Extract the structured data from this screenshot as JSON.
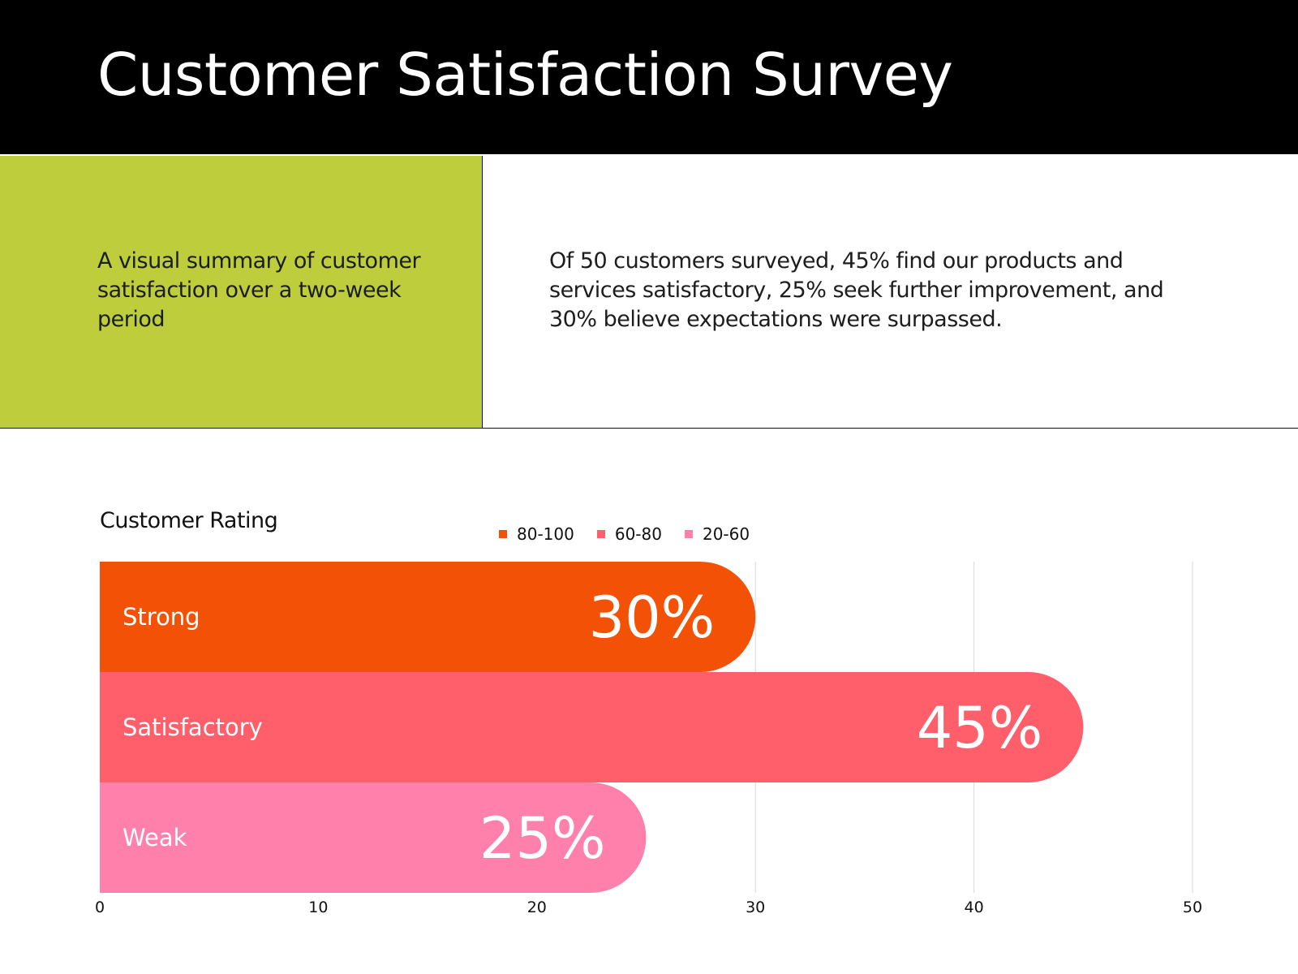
{
  "header": {
    "title": "Customer Satisfaction Survey"
  },
  "summary": {
    "text": "A visual summary of customer satisfaction over a two-week period"
  },
  "description": {
    "text": "Of 50 customers surveyed, 45% find our products and services satisfactory, 25% seek further improvement, and 30% believe expectations were surpassed."
  },
  "colors": {
    "header_bg": "#000000",
    "summary_bg": "#bdcd3b",
    "strong": "#f25106",
    "satisfactory": "#ff5e6b",
    "weak": "#ff80aa",
    "gridline": "#d9d9d9"
  },
  "chart_data": {
    "type": "bar",
    "orientation": "horizontal",
    "title": "Customer Rating",
    "categories": [
      "Strong",
      "Satisfactory",
      "Weak"
    ],
    "values": [
      30,
      45,
      25
    ],
    "value_labels": [
      "30%",
      "45%",
      "25%"
    ],
    "colors": [
      "#f25106",
      "#ff5e6b",
      "#ff80aa"
    ],
    "legend": [
      {
        "label": "80-100",
        "color": "#f25106"
      },
      {
        "label": "60-80",
        "color": "#ff5e6b"
      },
      {
        "label": "20-60",
        "color": "#ff80aa"
      }
    ],
    "legend_position": "top",
    "xlim": [
      0,
      50
    ],
    "xticks": [
      0,
      10,
      20,
      30,
      40,
      50
    ],
    "grid": true
  }
}
